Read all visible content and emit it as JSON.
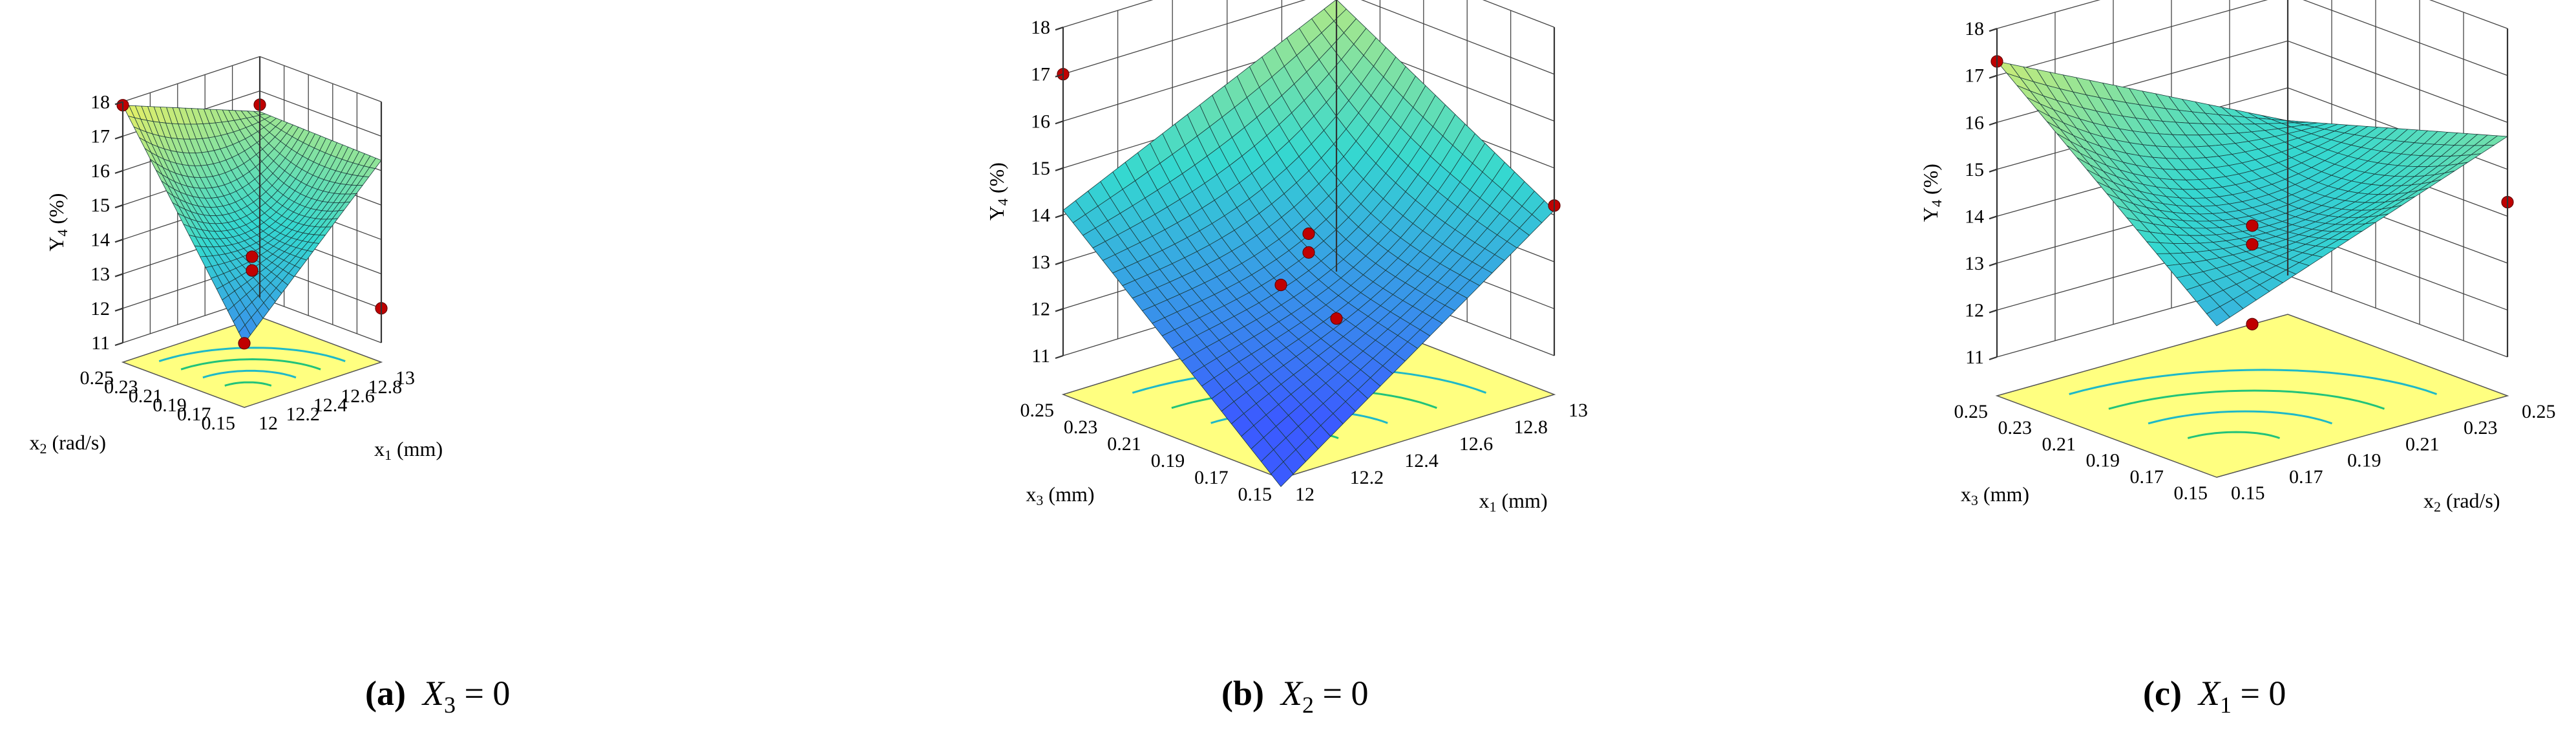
{
  "chart_data": [
    {
      "type": "surface",
      "panel": "a",
      "caption": {
        "label": "(a)",
        "var": "X",
        "sub": "3",
        "eq": " = 0"
      },
      "zlabel": {
        "main": "Y",
        "sub": "4",
        "rest": " (%)"
      },
      "z_ticks": [
        "11",
        "12",
        "13",
        "14",
        "15",
        "16",
        "17",
        "18"
      ],
      "zlim": [
        11,
        18
      ],
      "x_axis": {
        "label_main": "x",
        "label_sub": "1",
        "label_rest": " (mm)",
        "ticks": [
          "12",
          "12.2",
          "12.4",
          "12.6",
          "12.8",
          "13"
        ],
        "range": [
          12,
          13
        ]
      },
      "y_axis": {
        "label_main": "x",
        "label_sub": "2",
        "label_rest": " (rad/s)",
        "ticks": [
          "0.15",
          "0.17",
          "0.19",
          "0.21",
          "0.23",
          "0.25"
        ],
        "range": [
          0.15,
          0.25
        ]
      },
      "surface_corners": {
        "xlo_ylo": 12.3,
        "xhi_ylo": 16.3,
        "xlo_yhi": 17.9,
        "xhi_yhi": 16.4
      },
      "surface_min": 10.9,
      "design_points": [
        {
          "x": 12,
          "y": 0.25,
          "z": 17.9
        },
        {
          "x": 13,
          "y": 0.25,
          "z": 16.6
        },
        {
          "x": 12.5,
          "y": 0.2,
          "z": 13.5
        },
        {
          "x": 12.5,
          "y": 0.2,
          "z": 13.1
        },
        {
          "x": 12,
          "y": 0.15,
          "z": 12.3
        },
        {
          "x": 13,
          "y": 0.15,
          "z": 12.0
        }
      ]
    },
    {
      "type": "surface",
      "panel": "b",
      "caption": {
        "label": "(b)",
        "var": "X",
        "sub": "2",
        "eq": " = 0"
      },
      "zlabel": {
        "main": "Y",
        "sub": "4",
        "rest": " (%)"
      },
      "z_ticks": [
        "11",
        "12",
        "13",
        "14",
        "15",
        "16",
        "17",
        "18"
      ],
      "zlim": [
        11,
        18
      ],
      "x_axis": {
        "label_main": "x",
        "label_sub": "1",
        "label_rest": " (mm)",
        "ticks": [
          "12",
          "12.2",
          "12.4",
          "12.6",
          "12.8",
          "13"
        ],
        "range": [
          12,
          13
        ]
      },
      "y_axis": {
        "label_main": "x",
        "label_sub": "3",
        "label_rest": " (mm)",
        "ticks": [
          "0.15",
          "0.17",
          "0.19",
          "0.21",
          "0.23",
          "0.25"
        ],
        "range": [
          0.15,
          0.25
        ]
      },
      "surface_corners": {
        "xlo_ylo": 10.0,
        "xhi_ylo": 14.1,
        "xlo_yhi": 14.1,
        "xhi_yhi": 16.8
      },
      "surface_min": 10.0,
      "design_points": [
        {
          "x": 12,
          "y": 0.25,
          "z": 17.0
        },
        {
          "x": 13,
          "y": 0.15,
          "z": 14.2
        },
        {
          "x": 12,
          "y": 0.15,
          "z": 14.3
        },
        {
          "x": 12.5,
          "y": 0.2,
          "z": 13.6
        },
        {
          "x": 12.5,
          "y": 0.2,
          "z": 13.2
        },
        {
          "x": 13,
          "y": 0.25,
          "z": 10.0
        }
      ]
    },
    {
      "type": "surface",
      "panel": "c",
      "caption": {
        "label": "(c)",
        "var": "X",
        "sub": "1",
        "eq": " = 0"
      },
      "zlabel": {
        "main": "Y",
        "sub": "4",
        "rest": " (%)"
      },
      "z_ticks": [
        "11",
        "12",
        "13",
        "14",
        "15",
        "16",
        "17",
        "18"
      ],
      "zlim": [
        11,
        18
      ],
      "x_axis": {
        "label_main": "x",
        "label_sub": "2",
        "label_rest": " (rad/s)",
        "ticks": [
          "0.15",
          "0.17",
          "0.19",
          "0.21",
          "0.23",
          "0.25"
        ],
        "range": [
          0.15,
          0.25
        ]
      },
      "y_axis": {
        "label_main": "x",
        "label_sub": "3",
        "label_rest": " (mm)",
        "ticks": [
          "0.15",
          "0.17",
          "0.19",
          "0.21",
          "0.23",
          "0.25"
        ],
        "range": [
          0.15,
          0.25
        ]
      },
      "surface_corners": {
        "xlo_ylo": 13.4,
        "xhi_ylo": 15.7,
        "xlo_yhi": 17.3,
        "xhi_yhi": 14.3
      },
      "surface_min": 11.2,
      "design_points": [
        {
          "x": 0.15,
          "y": 0.25,
          "z": 17.3
        },
        {
          "x": 0.25,
          "y": 0.15,
          "z": 14.3
        },
        {
          "x": 0.2,
          "y": 0.2,
          "z": 13.8
        },
        {
          "x": 0.2,
          "y": 0.2,
          "z": 13.4
        },
        {
          "x": 0.2,
          "y": 0.2,
          "z": 11.7
        }
      ]
    }
  ],
  "colors": {
    "floor": "#ffff80",
    "surface_low": "#3b5bff",
    "surface_mid": "#35d8d0",
    "surface_high": "#f0f060",
    "design_point": "#c00000",
    "design_point_below": "#ffd6e0"
  }
}
